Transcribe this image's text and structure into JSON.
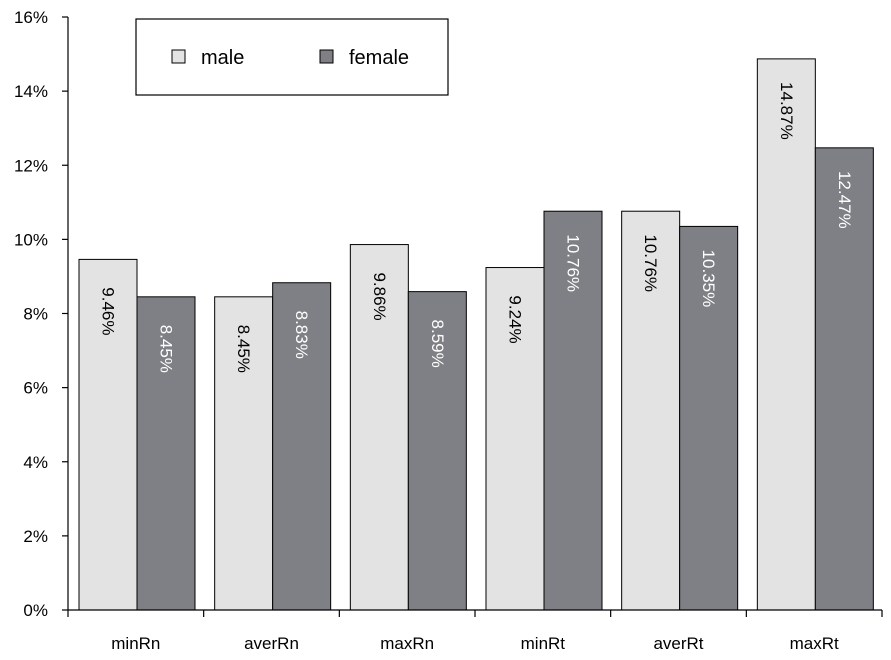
{
  "chart_data": {
    "type": "bar",
    "categories": [
      "minRn",
      "averRn",
      "maxRn",
      "minRt",
      "averRt",
      "maxRt"
    ],
    "series": [
      {
        "name": "male",
        "values": [
          9.46,
          8.45,
          9.86,
          9.24,
          10.76,
          14.87
        ],
        "labels": [
          "9.46%",
          "8.45%",
          "9.86%",
          "9.24%",
          "10.76%",
          "14.87%"
        ],
        "color": "#e3e3e3",
        "label_color": "#000000"
      },
      {
        "name": "female",
        "values": [
          8.45,
          8.83,
          8.59,
          10.76,
          10.35,
          12.47
        ],
        "labels": [
          "8.45%",
          "8.83%",
          "8.59%",
          "10.76%",
          "10.35%",
          "12.47%"
        ],
        "color": "#7f8085",
        "label_color": "#ffffff"
      }
    ],
    "ylim": [
      0,
      16
    ],
    "yticks": [
      "0%",
      "2%",
      "4%",
      "6%",
      "8%",
      "10%",
      "12%",
      "14%",
      "16%"
    ],
    "grid": false,
    "legend_position": "top-left",
    "title": "",
    "xlabel": "",
    "ylabel": ""
  }
}
